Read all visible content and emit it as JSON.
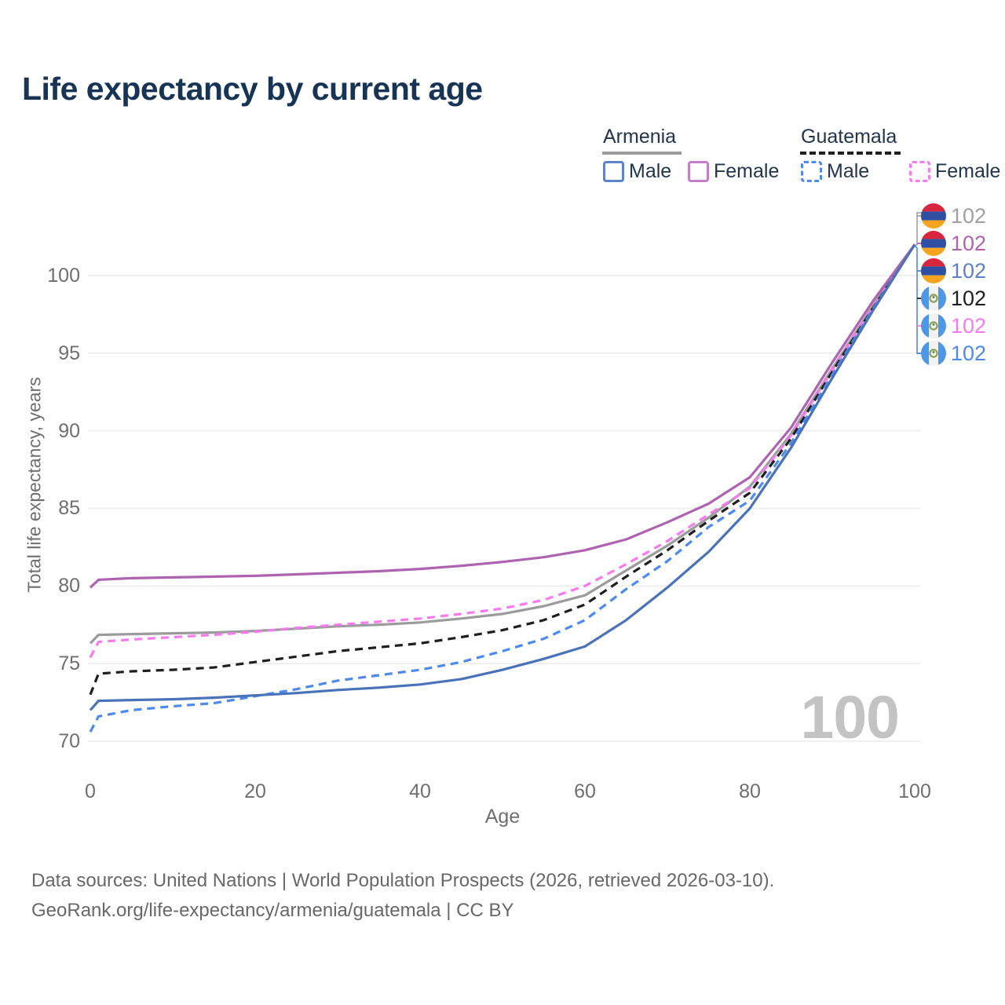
{
  "title": "Life expectancy by current age",
  "legend": {
    "groups": [
      {
        "country": "Armenia",
        "line_style": "solid",
        "line_color": "#9b9b9b",
        "items": [
          {
            "label": "Male",
            "swatch_color": "#5c84c8",
            "style": "solid"
          },
          {
            "label": "Female",
            "swatch_color": "#c37fc4",
            "style": "solid"
          }
        ]
      },
      {
        "country": "Guatemala",
        "line_style": "dashed",
        "line_color": "#1f1f1f",
        "items": [
          {
            "label": "Male",
            "swatch_color": "#4d8af0",
            "style": "dashed"
          },
          {
            "label": "Female",
            "swatch_color": "#f97af0",
            "style": "dashed"
          }
        ]
      }
    ]
  },
  "chart_data": {
    "type": "line",
    "title": "Life expectancy by current age",
    "xlabel": "Age",
    "ylabel": "Total life expectancy, years",
    "xlim": [
      0,
      100
    ],
    "ylim": [
      69.5,
      103
    ],
    "xticks": [
      0,
      20,
      40,
      60,
      80,
      100
    ],
    "yticks": [
      70,
      75,
      80,
      85,
      90,
      95,
      100
    ],
    "grid": "horizontal",
    "hover_age": "100",
    "x": [
      0,
      1,
      5,
      10,
      15,
      20,
      25,
      30,
      35,
      40,
      45,
      50,
      55,
      60,
      65,
      70,
      75,
      80,
      85,
      90,
      95,
      100
    ],
    "series": [
      {
        "name": "Armenia Male",
        "country": "Armenia",
        "sex": "Male",
        "style": "solid",
        "color": "#4a72b8",
        "values": [
          72.0,
          72.6,
          72.65,
          72.7,
          72.8,
          72.95,
          73.1,
          73.3,
          73.45,
          73.65,
          74.0,
          74.6,
          75.3,
          76.1,
          77.8,
          79.9,
          82.2,
          85.0,
          88.9,
          93.4,
          97.8,
          102
        ]
      },
      {
        "name": "Armenia Female",
        "country": "Armenia",
        "sex": "Female",
        "style": "solid",
        "color": "#ae63b0",
        "values": [
          79.9,
          80.4,
          80.5,
          80.55,
          80.6,
          80.65,
          80.75,
          80.85,
          80.95,
          81.1,
          81.3,
          81.55,
          81.85,
          82.3,
          83.0,
          84.1,
          85.3,
          87.0,
          90.2,
          94.4,
          98.4,
          102
        ]
      },
      {
        "name": "Armenia Both sexes",
        "country": "Armenia",
        "sex": "Both",
        "style": "solid",
        "color": "#9b9b9b",
        "values": [
          76.3,
          76.85,
          76.9,
          76.95,
          77.0,
          77.1,
          77.25,
          77.4,
          77.5,
          77.65,
          77.9,
          78.2,
          78.7,
          79.4,
          81.0,
          82.6,
          84.4,
          86.4,
          89.8,
          94.0,
          98.1,
          102
        ]
      },
      {
        "name": "Guatemala Male",
        "country": "Guatemala",
        "sex": "Male",
        "style": "dashed",
        "color": "#4d8af0",
        "values": [
          70.6,
          71.6,
          72.0,
          72.25,
          72.45,
          72.9,
          73.35,
          73.9,
          74.25,
          74.6,
          75.1,
          75.8,
          76.6,
          77.8,
          79.8,
          81.6,
          83.8,
          85.5,
          89.2,
          93.6,
          97.9,
          102
        ]
      },
      {
        "name": "Guatemala Female",
        "country": "Guatemala",
        "sex": "Female",
        "style": "dashed",
        "color": "#f97af0",
        "values": [
          75.4,
          76.4,
          76.55,
          76.7,
          76.85,
          77.05,
          77.3,
          77.5,
          77.7,
          77.9,
          78.2,
          78.55,
          79.1,
          80.0,
          81.4,
          82.9,
          84.6,
          86.3,
          89.7,
          93.9,
          98.0,
          102
        ]
      },
      {
        "name": "Guatemala Both sexes",
        "country": "Guatemala",
        "sex": "Both",
        "style": "dashed",
        "color": "#1f1f1f",
        "values": [
          73.0,
          74.35,
          74.5,
          74.6,
          74.75,
          75.1,
          75.45,
          75.8,
          76.05,
          76.3,
          76.7,
          77.15,
          77.8,
          78.8,
          80.6,
          82.3,
          84.2,
          86.0,
          89.5,
          93.8,
          97.95,
          102
        ]
      }
    ],
    "end_labels": [
      {
        "flag": "armenia",
        "value": "102",
        "color": "#a0a0a0"
      },
      {
        "flag": "armenia",
        "value": "102",
        "color": "#ae63b0"
      },
      {
        "flag": "armenia",
        "value": "102",
        "color": "#5c80ca"
      },
      {
        "flag": "guatemala",
        "value": "102",
        "color": "#1f1f1f"
      },
      {
        "flag": "guatemala",
        "value": "102",
        "color": "#f97af0"
      },
      {
        "flag": "guatemala",
        "value": "102",
        "color": "#4d8af0"
      }
    ]
  },
  "footer": {
    "line1": "Data sources: United Nations | World Population Prospects (2026, retrieved 2026-03-10).",
    "line2": "GeoRank.org/life-expectancy/armenia/guatemala | CC BY"
  }
}
